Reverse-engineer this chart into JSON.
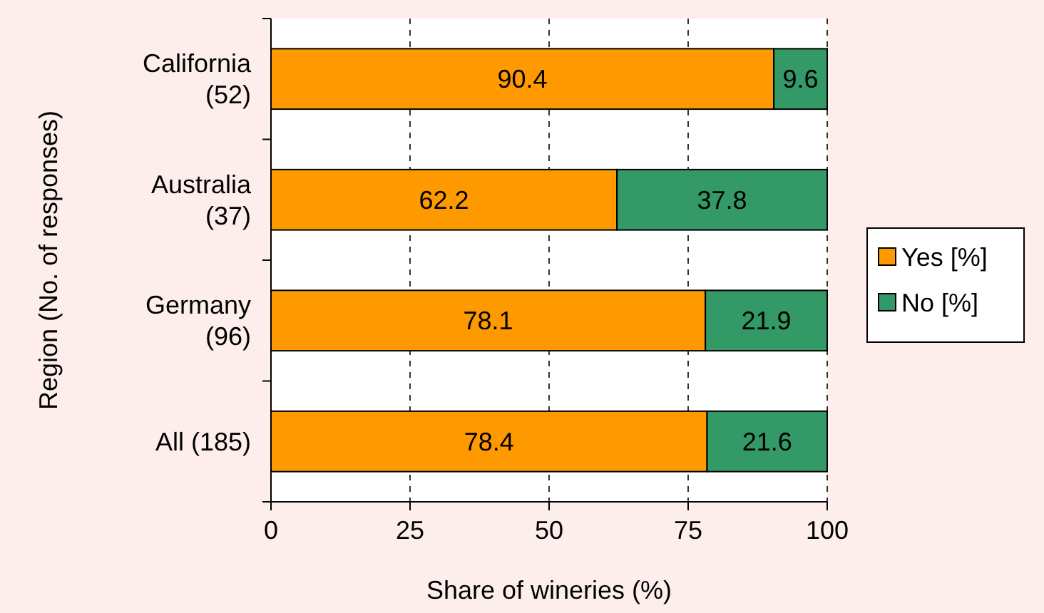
{
  "chart_data": {
    "type": "bar",
    "orientation": "horizontal",
    "stacked": true,
    "xlabel": "Share of wineries (%)",
    "ylabel": "Region (No. of responses)",
    "categories": [
      "California (52)",
      "Australia (37)",
      "Germany (96)",
      "All (185)"
    ],
    "series": [
      {
        "name": "Yes [%]",
        "color": "#ff9900",
        "values": [
          90.4,
          62.2,
          78.1,
          78.4
        ]
      },
      {
        "name": "No [%]",
        "color": "#339966",
        "values": [
          9.6,
          37.8,
          21.9,
          21.6
        ]
      }
    ],
    "xlim": [
      0,
      100
    ],
    "xticks": [
      0,
      25,
      50,
      75,
      100
    ],
    "grid": "x",
    "legend": "right",
    "data_labels": true
  }
}
